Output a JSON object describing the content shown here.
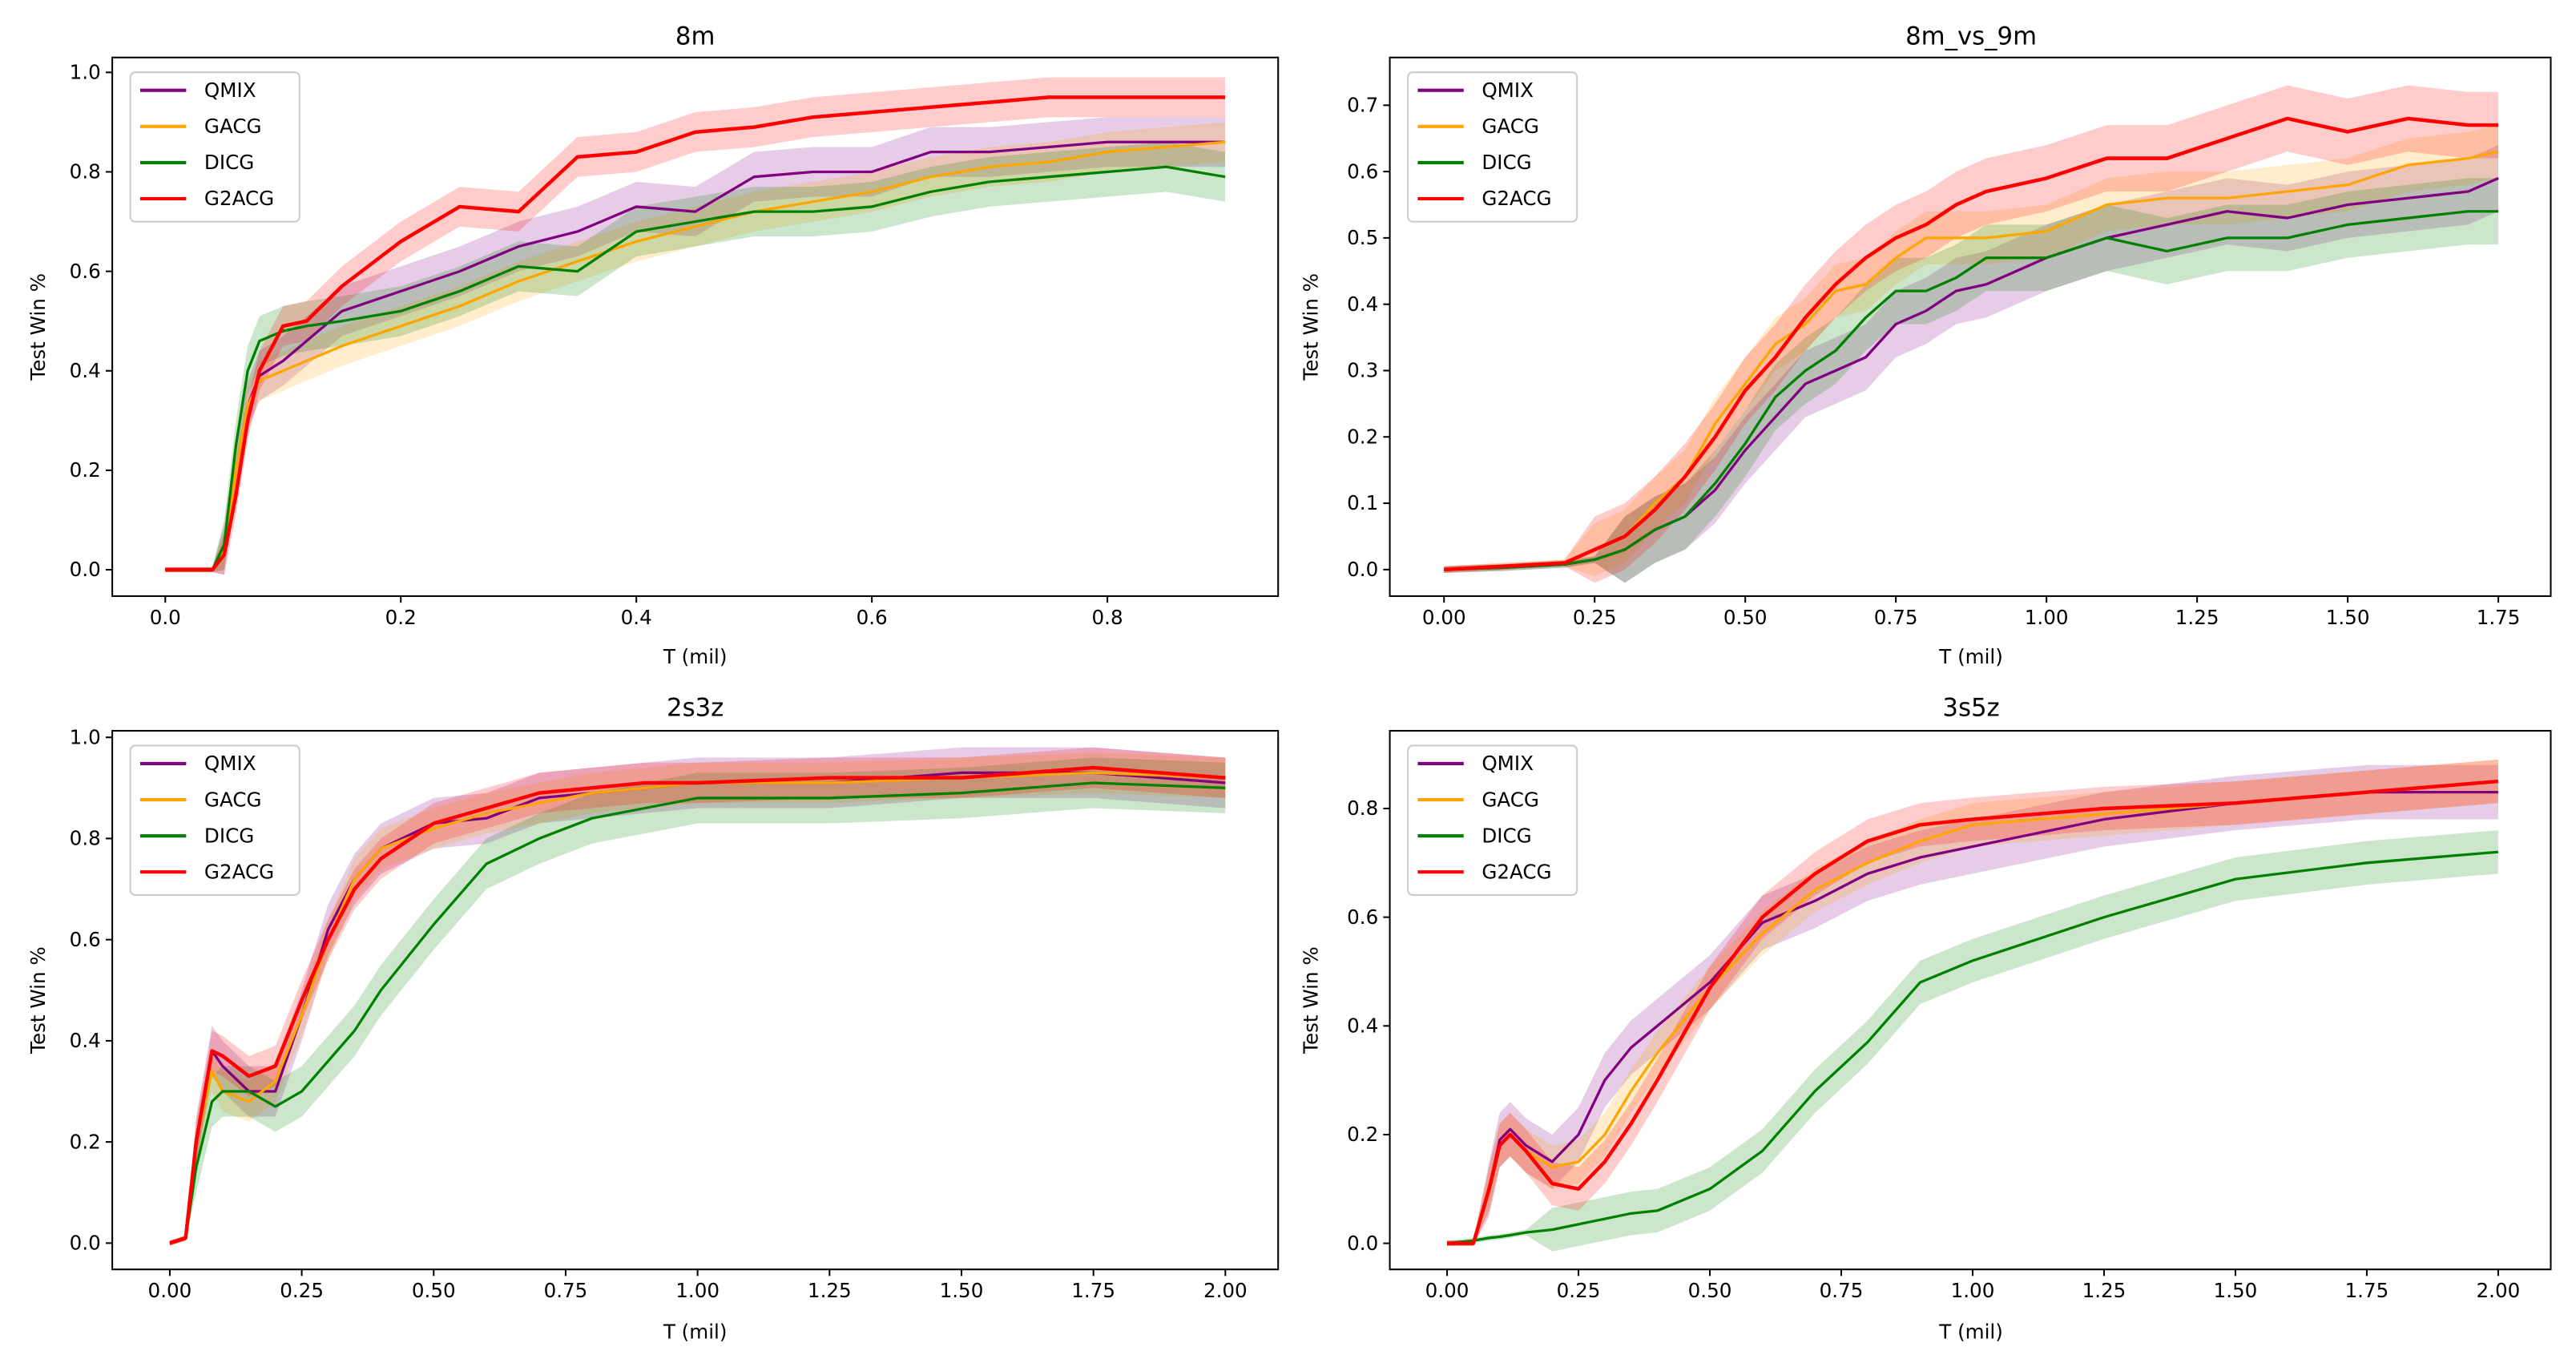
{
  "colors": {
    "QMIX": "#800080",
    "GACG": "#FFA500",
    "DICG": "#008000",
    "G2ACG": "#FF0000"
  },
  "chart_data": [
    {
      "type": "line",
      "title": "8m",
      "xlabel": "T (mil)",
      "ylabel": "Test Win %",
      "xlim": [
        -0.045,
        0.945
      ],
      "ylim": [
        -0.053,
        1.03
      ],
      "xticks": [
        0.0,
        0.2,
        0.4,
        0.6,
        0.8
      ],
      "xtick_labels": [
        "0.0",
        "0.2",
        "0.4",
        "0.6",
        "0.8"
      ],
      "yticks": [
        0.0,
        0.2,
        0.4,
        0.6,
        0.8,
        1.0
      ],
      "ytick_labels": [
        "0.0",
        "0.2",
        "0.4",
        "0.6",
        "0.8",
        "1.0"
      ],
      "legend": "top-left",
      "grid": false,
      "x": [
        0,
        0.04,
        0.05,
        0.06,
        0.07,
        0.08,
        0.1,
        0.12,
        0.15,
        0.2,
        0.25,
        0.3,
        0.35,
        0.4,
        0.45,
        0.5,
        0.55,
        0.6,
        0.65,
        0.7,
        0.75,
        0.8,
        0.85,
        0.9
      ],
      "series": [
        {
          "name": "QMIX",
          "band": 0.05,
          "values": [
            0,
            0,
            0.04,
            0.2,
            0.33,
            0.39,
            0.42,
            0.46,
            0.52,
            0.56,
            0.6,
            0.65,
            0.68,
            0.73,
            0.72,
            0.79,
            0.8,
            0.8,
            0.84,
            0.84,
            0.85,
            0.86,
            0.86,
            0.86
          ]
        },
        {
          "name": "GACG",
          "band": 0.04,
          "values": [
            0,
            0,
            0.04,
            0.2,
            0.33,
            0.38,
            0.4,
            0.42,
            0.45,
            0.49,
            0.53,
            0.58,
            0.62,
            0.66,
            0.69,
            0.72,
            0.74,
            0.76,
            0.79,
            0.81,
            0.82,
            0.84,
            0.85,
            0.86
          ]
        },
        {
          "name": "DICG",
          "band": 0.05,
          "values": [
            0,
            0,
            0.05,
            0.25,
            0.4,
            0.46,
            0.48,
            0.49,
            0.5,
            0.52,
            0.56,
            0.61,
            0.6,
            0.68,
            0.7,
            0.72,
            0.72,
            0.73,
            0.76,
            0.78,
            0.79,
            0.8,
            0.81,
            0.79
          ]
        },
        {
          "name": "G2ACG",
          "band": 0.04,
          "values": [
            0,
            0,
            0.03,
            0.15,
            0.3,
            0.4,
            0.49,
            0.5,
            0.57,
            0.66,
            0.73,
            0.72,
            0.83,
            0.84,
            0.88,
            0.89,
            0.91,
            0.92,
            0.93,
            0.94,
            0.95,
            0.95,
            0.95,
            0.95
          ]
        }
      ]
    },
    {
      "type": "line",
      "title": "8m_vs_9m",
      "xlabel": "T (mil)",
      "ylabel": "Test Win %",
      "xlim": [
        -0.09,
        1.837
      ],
      "ylim": [
        -0.04,
        0.772
      ],
      "xticks": [
        0,
        0.25,
        0.5,
        0.75,
        1.0,
        1.25,
        1.5,
        1.75
      ],
      "xtick_labels": [
        "0.00",
        "0.25",
        "0.50",
        "0.75",
        "1.00",
        "1.25",
        "1.50",
        "1.75"
      ],
      "yticks": [
        0,
        0.1,
        0.2,
        0.3,
        0.4,
        0.5,
        0.6,
        0.7
      ],
      "ytick_labels": [
        "0.0",
        "0.1",
        "0.2",
        "0.3",
        "0.4",
        "0.5",
        "0.6",
        "0.7"
      ],
      "legend": "top-left",
      "grid": false,
      "x": [
        0,
        0.1,
        0.2,
        0.25,
        0.3,
        0.35,
        0.4,
        0.45,
        0.5,
        0.55,
        0.6,
        0.65,
        0.7,
        0.75,
        0.8,
        0.85,
        0.9,
        1.0,
        1.1,
        1.2,
        1.3,
        1.4,
        1.5,
        1.6,
        1.7,
        1.75
      ],
      "series": [
        {
          "name": "QMIX",
          "band": 0.05,
          "values": [
            0,
            0.003,
            0.008,
            0.015,
            0.03,
            0.06,
            0.08,
            0.12,
            0.18,
            0.23,
            0.28,
            0.3,
            0.32,
            0.37,
            0.39,
            0.42,
            0.43,
            0.47,
            0.5,
            0.52,
            0.54,
            0.53,
            0.55,
            0.56,
            0.57,
            0.59
          ]
        },
        {
          "name": "GACG",
          "band": 0.04,
          "values": [
            0,
            0.005,
            0.01,
            0.03,
            0.05,
            0.1,
            0.14,
            0.22,
            0.28,
            0.34,
            0.37,
            0.42,
            0.43,
            0.47,
            0.5,
            0.5,
            0.5,
            0.51,
            0.55,
            0.56,
            0.56,
            0.57,
            0.58,
            0.61,
            0.62,
            0.63
          ]
        },
        {
          "name": "DICG",
          "band": 0.05,
          "values": [
            0,
            0.003,
            0.008,
            0.015,
            0.03,
            0.06,
            0.08,
            0.13,
            0.19,
            0.26,
            0.3,
            0.33,
            0.38,
            0.42,
            0.42,
            0.44,
            0.47,
            0.47,
            0.5,
            0.48,
            0.5,
            0.5,
            0.52,
            0.53,
            0.54,
            0.54
          ]
        },
        {
          "name": "G2ACG",
          "band": 0.05,
          "values": [
            0,
            0.005,
            0.01,
            0.03,
            0.05,
            0.09,
            0.14,
            0.2,
            0.27,
            0.32,
            0.38,
            0.43,
            0.47,
            0.5,
            0.52,
            0.55,
            0.57,
            0.59,
            0.62,
            0.62,
            0.65,
            0.68,
            0.66,
            0.68,
            0.67,
            0.67
          ]
        }
      ]
    },
    {
      "type": "line",
      "title": "2s3z",
      "xlabel": "T (mil)",
      "ylabel": "Test Win %",
      "xlim": [
        -0.109,
        2.1
      ],
      "ylim": [
        -0.052,
        1.013
      ],
      "xticks": [
        0,
        0.25,
        0.5,
        0.75,
        1.0,
        1.25,
        1.5,
        1.75,
        2.0
      ],
      "xtick_labels": [
        "0.00",
        "0.25",
        "0.50",
        "0.75",
        "1.00",
        "1.25",
        "1.50",
        "1.75",
        "2.00"
      ],
      "yticks": [
        0,
        0.2,
        0.4,
        0.6,
        0.8,
        1.0
      ],
      "ytick_labels": [
        "0.0",
        "0.2",
        "0.4",
        "0.6",
        "0.8",
        "1.0"
      ],
      "legend": "top-left",
      "grid": false,
      "x": [
        0,
        0.03,
        0.05,
        0.08,
        0.1,
        0.15,
        0.2,
        0.25,
        0.3,
        0.35,
        0.4,
        0.5,
        0.6,
        0.7,
        0.8,
        0.9,
        1.0,
        1.25,
        1.5,
        1.75,
        2.0
      ],
      "series": [
        {
          "name": "QMIX",
          "band": 0.05,
          "values": [
            0,
            0.01,
            0.2,
            0.38,
            0.35,
            0.3,
            0.3,
            0.45,
            0.62,
            0.72,
            0.78,
            0.83,
            0.84,
            0.88,
            0.89,
            0.9,
            0.91,
            0.91,
            0.93,
            0.93,
            0.91
          ]
        },
        {
          "name": "GACG",
          "band": 0.04,
          "values": [
            0,
            0.01,
            0.2,
            0.34,
            0.3,
            0.28,
            0.32,
            0.45,
            0.6,
            0.72,
            0.78,
            0.82,
            0.85,
            0.87,
            0.89,
            0.9,
            0.91,
            0.91,
            0.92,
            0.93,
            0.92
          ]
        },
        {
          "name": "DICG",
          "band": 0.05,
          "values": [
            0,
            0.01,
            0.15,
            0.28,
            0.3,
            0.3,
            0.27,
            0.3,
            0.36,
            0.42,
            0.5,
            0.63,
            0.75,
            0.8,
            0.84,
            0.86,
            0.88,
            0.88,
            0.89,
            0.91,
            0.9
          ]
        },
        {
          "name": "G2ACG",
          "band": 0.04,
          "values": [
            0,
            0.01,
            0.2,
            0.38,
            0.37,
            0.33,
            0.35,
            0.48,
            0.6,
            0.7,
            0.76,
            0.83,
            0.86,
            0.89,
            0.9,
            0.91,
            0.91,
            0.92,
            0.92,
            0.94,
            0.92
          ]
        }
      ]
    },
    {
      "type": "line",
      "title": "3s5z",
      "xlabel": "T (mil)",
      "ylabel": "Test Win %",
      "xlim": [
        -0.109,
        2.1
      ],
      "ylim": [
        -0.048,
        0.943
      ],
      "xticks": [
        0,
        0.25,
        0.5,
        0.75,
        1.0,
        1.25,
        1.5,
        1.75,
        2.0
      ],
      "xtick_labels": [
        "0.00",
        "0.25",
        "0.50",
        "0.75",
        "1.00",
        "1.25",
        "1.50",
        "1.75",
        "2.00"
      ],
      "yticks": [
        0,
        0.2,
        0.4,
        0.6,
        0.8
      ],
      "ytick_labels": [
        "0.0",
        "0.2",
        "0.4",
        "0.6",
        "0.8"
      ],
      "legend": "top-left",
      "grid": false,
      "x": [
        0,
        0.05,
        0.08,
        0.1,
        0.12,
        0.15,
        0.2,
        0.25,
        0.3,
        0.35,
        0.4,
        0.5,
        0.6,
        0.7,
        0.8,
        0.9,
        1.0,
        1.25,
        1.5,
        1.75,
        2.0
      ],
      "series": [
        {
          "name": "QMIX",
          "band": 0.05,
          "values": [
            0,
            0,
            0.1,
            0.19,
            0.21,
            0.18,
            0.15,
            0.2,
            0.3,
            0.36,
            0.4,
            0.48,
            0.59,
            0.63,
            0.68,
            0.71,
            0.73,
            0.78,
            0.81,
            0.83,
            0.83
          ]
        },
        {
          "name": "GACG",
          "band": 0.04,
          "values": [
            0,
            0,
            0.1,
            0.18,
            0.2,
            0.17,
            0.14,
            0.15,
            0.2,
            0.28,
            0.35,
            0.47,
            0.57,
            0.65,
            0.7,
            0.74,
            0.77,
            0.79,
            0.81,
            0.83,
            0.85
          ]
        },
        {
          "name": "DICG",
          "band": 0.04,
          "values": [
            0,
            0.005,
            0.01,
            0.012,
            0.015,
            0.02,
            0.025,
            0.035,
            0.045,
            0.055,
            0.06,
            0.1,
            0.17,
            0.28,
            0.37,
            0.48,
            0.52,
            0.6,
            0.67,
            0.7,
            0.72
          ]
        },
        {
          "name": "G2ACG",
          "band": 0.04,
          "values": [
            0,
            0,
            0.1,
            0.18,
            0.2,
            0.17,
            0.11,
            0.1,
            0.15,
            0.22,
            0.3,
            0.47,
            0.6,
            0.68,
            0.74,
            0.77,
            0.78,
            0.8,
            0.81,
            0.83,
            0.85
          ]
        }
      ]
    }
  ]
}
